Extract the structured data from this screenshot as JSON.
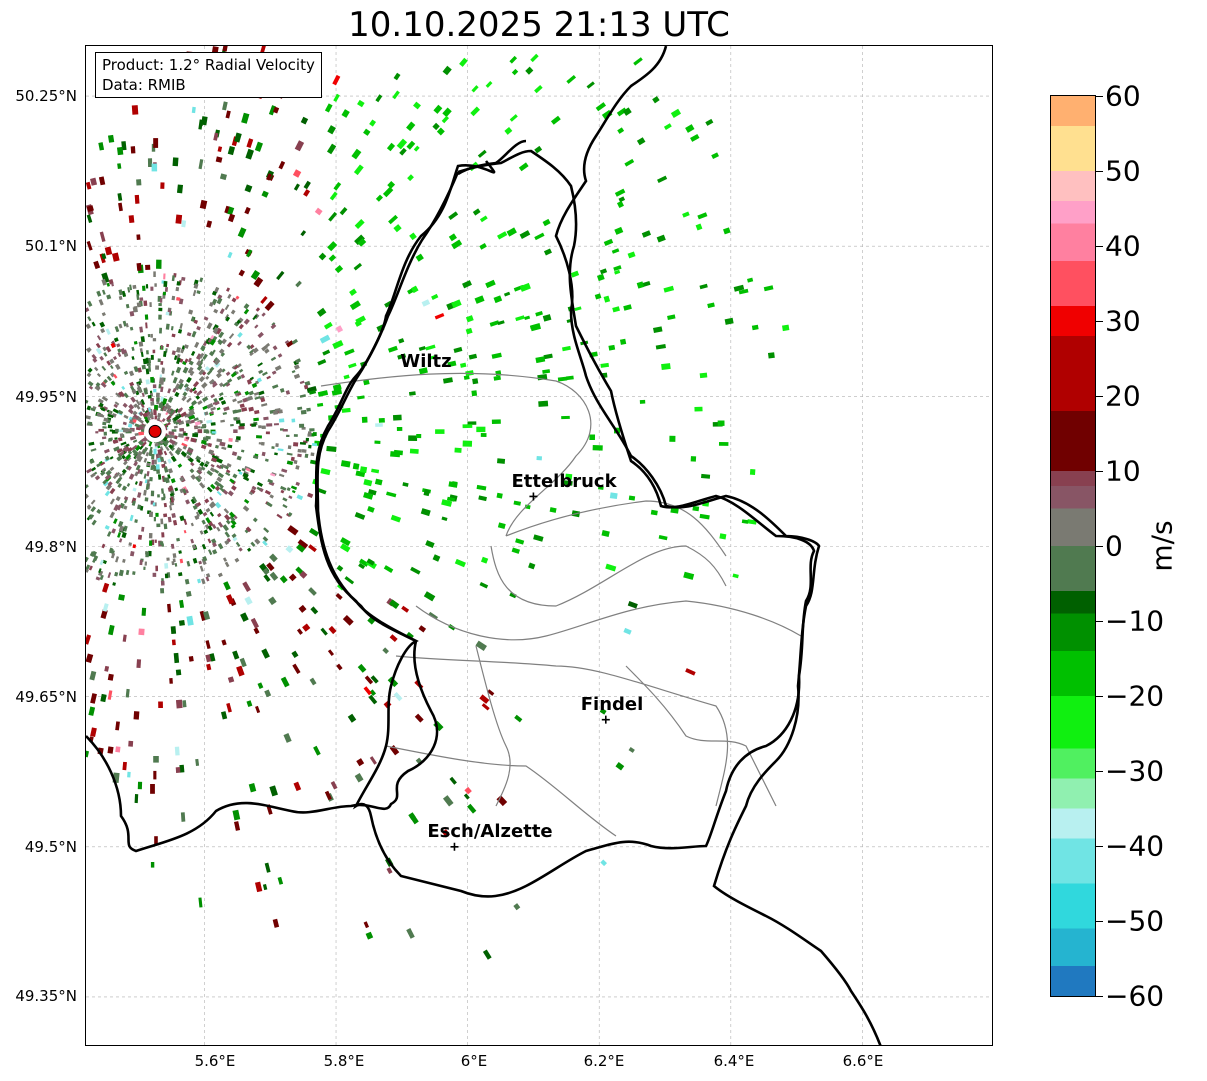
{
  "title": "10.10.2025 21:13 UTC",
  "info": {
    "product": "Product: 1.2° Radial Velocity",
    "data": "Data: RMIB"
  },
  "map": {
    "lon_range": [
      5.42,
      6.8
    ],
    "lat_range": [
      49.3,
      50.3
    ],
    "lat_ticks": [
      "50.25°N",
      "50.1°N",
      "49.95°N",
      "49.8°N",
      "49.65°N",
      "49.5°N",
      "49.35°N"
    ],
    "lat_values": [
      50.25,
      50.1,
      49.95,
      49.8,
      49.65,
      49.5,
      49.35
    ],
    "lon_ticks": [
      "5.6°E",
      "5.8°E",
      "6°E",
      "6.2°E",
      "6.4°E",
      "6.6°E"
    ],
    "lon_values": [
      5.6,
      5.8,
      6.0,
      6.2,
      6.4,
      6.6
    ],
    "radar_site": {
      "lon": 5.525,
      "lat": 49.915
    },
    "cities": [
      {
        "name": "Wiltz",
        "lon": 5.93,
        "lat": 49.97,
        "marker": false
      },
      {
        "name": "Ettelbruck",
        "lon": 6.1,
        "lat": 49.85,
        "marker": true
      },
      {
        "name": "Findel",
        "lon": 6.21,
        "lat": 49.627,
        "marker": true
      },
      {
        "name": "Esch/Alzette",
        "lon": 5.98,
        "lat": 49.5,
        "marker": true
      }
    ],
    "colors": {
      "border": "#000000",
      "canton": "#808080",
      "grid": "#b0b0b0",
      "radar_site": "#e00000"
    }
  },
  "colorbar": {
    "unit": "m/s",
    "min": -60,
    "max": 60,
    "ticks": [
      "60",
      "50",
      "40",
      "30",
      "20",
      "10",
      "0",
      "−10",
      "−20",
      "−30",
      "−40",
      "−50",
      "−60"
    ],
    "tick_values": [
      60,
      50,
      40,
      30,
      20,
      10,
      0,
      -10,
      -20,
      -30,
      -40,
      -50,
      -60
    ],
    "stops": [
      {
        "v": -60,
        "c": "#2079c0"
      },
      {
        "v": -56,
        "c": "#25b4d0"
      },
      {
        "v": -51,
        "c": "#30d8dd"
      },
      {
        "v": -45,
        "c": "#70e4e4"
      },
      {
        "v": -39,
        "c": "#b8f0f0"
      },
      {
        "v": -35,
        "c": "#90f0b0"
      },
      {
        "v": -31,
        "c": "#50f060"
      },
      {
        "v": -27,
        "c": "#10f010"
      },
      {
        "v": -20,
        "c": "#00c000"
      },
      {
        "v": -14,
        "c": "#009000"
      },
      {
        "v": -9,
        "c": "#006000"
      },
      {
        "v": -6,
        "c": "#507a50"
      },
      {
        "v": 0,
        "c": "#7a7a72"
      },
      {
        "v": 5,
        "c": "#885565"
      },
      {
        "v": 8,
        "c": "#884050"
      },
      {
        "v": 10,
        "c": "#700000"
      },
      {
        "v": 18,
        "c": "#b00000"
      },
      {
        "v": 28,
        "c": "#f00000"
      },
      {
        "v": 32,
        "c": "#ff5060"
      },
      {
        "v": 38,
        "c": "#ff80a0"
      },
      {
        "v": 43,
        "c": "#ffa0c8"
      },
      {
        "v": 46,
        "c": "#ffc0c0"
      },
      {
        "v": 50,
        "c": "#ffe090"
      },
      {
        "v": 56,
        "c": "#ffb070"
      },
      {
        "v": 60,
        "c": "#ff9850"
      }
    ]
  }
}
